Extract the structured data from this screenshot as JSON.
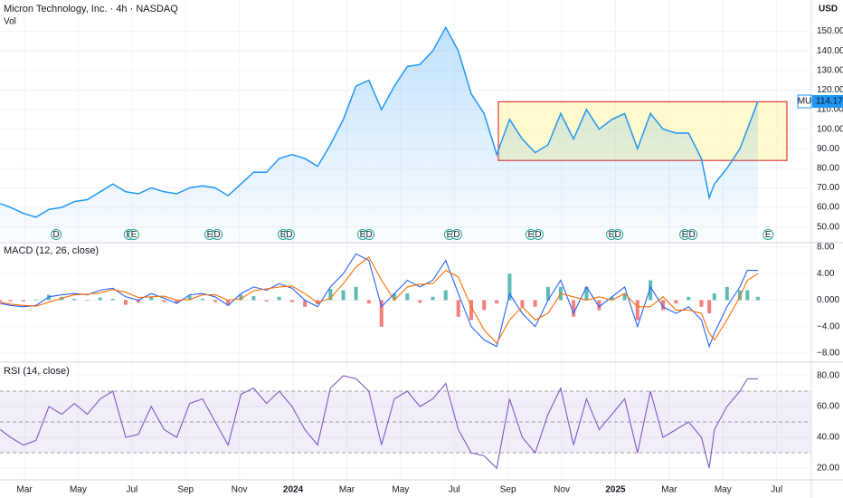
{
  "chart_data": [
    {
      "type": "line",
      "title": "Micron Technology, Inc. · 4h · NASDAQ",
      "subtitle": "Vol",
      "y_axis_label": "USD",
      "x": [
        1.1,
        1.48,
        1.96,
        2.43,
        2.91,
        3.39,
        3.86,
        4.34,
        4.82,
        5.29,
        5.77,
        6.24,
        6.72,
        7.2,
        7.67,
        8.15,
        8.63,
        9.1,
        9.58,
        10.06,
        10.53,
        11.01,
        11.48,
        11.96,
        12.44,
        12.91,
        13.39,
        13.87,
        14.34,
        14.82,
        15.29,
        15.77,
        16.25,
        16.72,
        17.2,
        17.68,
        18.15,
        18.63,
        19.11,
        19.58,
        20.06,
        20.53,
        21.01,
        21.49,
        21.96,
        22.44,
        22.92,
        23.39,
        23.87,
        24.34,
        24.82,
        25.3,
        25.77,
        26.25,
        26.72,
        27.2,
        27.49,
        27.68,
        28.15,
        28.63,
        28.91,
        29.3
      ],
      "series": [
        {
          "name": "MU",
          "color": "#2196f3",
          "values": [
            62,
            60,
            57,
            55,
            59,
            60,
            63,
            64,
            68,
            72,
            68,
            67,
            70,
            68,
            67,
            70,
            71,
            70,
            66,
            72,
            78,
            78,
            85,
            87,
            85,
            81,
            92,
            105,
            122,
            125,
            110,
            122,
            132,
            133,
            140,
            152,
            140,
            118,
            108,
            87,
            105,
            95,
            88,
            92,
            108,
            95,
            110,
            100,
            105,
            108,
            90,
            108,
            100,
            98,
            98,
            85,
            65,
            72,
            80,
            90,
            100,
            114.17
          ]
        }
      ],
      "box": {
        "x": [
          19.64,
          30.38
        ],
        "y": [
          84,
          114
        ],
        "stroke": "#e53935",
        "fill": "#fff59d"
      },
      "events": [
        {
          "x": 3.18,
          "label": "D"
        },
        {
          "x": 5.9,
          "label": "E"
        },
        {
          "x": 6.07,
          "label": "E"
        },
        {
          "x": 8.9,
          "label": "E"
        },
        {
          "x": 9.17,
          "label": "D"
        },
        {
          "x": 11.63,
          "label": "E"
        },
        {
          "x": 11.86,
          "label": "D"
        },
        {
          "x": 14.59,
          "label": "E"
        },
        {
          "x": 14.83,
          "label": "D"
        },
        {
          "x": 17.82,
          "label": "E"
        },
        {
          "x": 18.09,
          "label": "D"
        },
        {
          "x": 20.85,
          "label": "E"
        },
        {
          "x": 21.12,
          "label": "D"
        },
        {
          "x": 23.85,
          "label": "E"
        },
        {
          "x": 24.09,
          "label": "D"
        },
        {
          "x": 26.58,
          "label": "E"
        },
        {
          "x": 26.85,
          "label": "D"
        },
        {
          "x": 29.68,
          "label": "E"
        }
      ],
      "xlim": [
        1.09,
        31.29
      ],
      "xticks": [
        {
          "value": 2,
          "label": "Mar"
        },
        {
          "value": 4,
          "label": "May"
        },
        {
          "value": 6,
          "label": "Jul"
        },
        {
          "value": 8,
          "label": "Sep"
        },
        {
          "value": 10,
          "label": "Nov"
        },
        {
          "value": 12,
          "label": "2024"
        },
        {
          "value": 14,
          "label": "Mar"
        },
        {
          "value": 16,
          "label": "May"
        },
        {
          "value": 18,
          "label": "Jul"
        },
        {
          "value": 20,
          "label": "Sep"
        },
        {
          "value": 22,
          "label": "Nov"
        },
        {
          "value": 24,
          "label": "2025"
        },
        {
          "value": 26,
          "label": "Mar"
        },
        {
          "value": 28,
          "label": "May"
        },
        {
          "value": 30,
          "label": "Jul"
        }
      ],
      "ylim": [
        42,
        166
      ],
      "yticks": [
        {
          "value": 50,
          "label": "50.00"
        },
        {
          "value": 60,
          "label": "60.00"
        },
        {
          "value": 70,
          "label": "70.00"
        },
        {
          "value": 80,
          "label": "80.00"
        },
        {
          "value": 90,
          "label": "90.00"
        },
        {
          "value": 100,
          "label": "100.00"
        },
        {
          "value": 110,
          "label": "110.00"
        },
        {
          "value": 120,
          "label": "120.00"
        },
        {
          "value": 130,
          "label": "130.00"
        },
        {
          "value": 140,
          "label": "140.00"
        },
        {
          "value": 150,
          "label": "150.00"
        }
      ],
      "grid": true
    },
    {
      "type": "macd",
      "title": "MACD (12, 26, close)",
      "x": [
        1.1,
        1.48,
        1.96,
        2.43,
        2.91,
        3.39,
        3.86,
        4.34,
        4.82,
        5.29,
        5.77,
        6.24,
        6.72,
        7.2,
        7.67,
        8.15,
        8.63,
        9.1,
        9.58,
        10.06,
        10.53,
        11.01,
        11.48,
        11.96,
        12.44,
        12.91,
        13.39,
        13.87,
        14.34,
        14.82,
        15.29,
        15.77,
        16.25,
        16.72,
        17.2,
        17.68,
        18.15,
        18.63,
        19.11,
        19.58,
        20.06,
        20.53,
        21.01,
        21.49,
        21.96,
        22.44,
        22.92,
        23.39,
        23.87,
        24.34,
        24.82,
        25.3,
        25.77,
        26.25,
        26.72,
        27.2,
        27.49,
        27.68,
        28.15,
        28.63,
        28.91,
        29.3
      ],
      "series": [
        {
          "color": "#2962ff",
          "values": [
            -0.5,
            -0.8,
            -1,
            -0.8,
            0.5,
            0.8,
            1,
            0.8,
            1.5,
            1.8,
            0.5,
            0,
            1,
            0.3,
            -0.5,
            0.8,
            1,
            0.5,
            -0.8,
            1,
            2,
            1.5,
            2.5,
            1.8,
            0,
            -1,
            2,
            4,
            7,
            6,
            -1,
            1,
            3,
            2,
            3,
            6,
            1,
            -4,
            -6,
            -7,
            1,
            -2,
            -4,
            0,
            3,
            -2,
            2,
            -1,
            0.5,
            2,
            -4,
            2,
            -1,
            -2,
            -1,
            -3,
            -7,
            -5,
            -1,
            2,
            4.5,
            4.5
          ]
        },
        {
          "color": "#ff6d00",
          "values": [
            -0.3,
            -0.6,
            -0.8,
            -0.9,
            -0.3,
            0.3,
            0.8,
            0.9,
            1.1,
            1.6,
            1.2,
            0.4,
            0.5,
            0.6,
            0,
            0.1,
            0.8,
            0.8,
            0,
            0.2,
            1.4,
            1.7,
            2,
            2.1,
            1,
            -0.4,
            0.3,
            2.5,
            5,
            6.5,
            3,
            0,
            2,
            2.4,
            2.5,
            4.5,
            3.5,
            -1,
            -4.5,
            -6.5,
            -3,
            -1,
            -3,
            -2,
            1,
            0.5,
            0,
            0.5,
            0,
            1,
            -1,
            -1,
            0.5,
            -1.5,
            -1.5,
            -2,
            -5,
            -6,
            -3,
            0.5,
            3,
            4
          ]
        }
      ],
      "histogram": {
        "up_color": "#26a69a",
        "down_color": "#ef5350",
        "values": [
          -0.2,
          -0.2,
          -0.2,
          0.1,
          0.8,
          0.5,
          0.2,
          -0.1,
          0.4,
          0.2,
          -0.7,
          -0.4,
          0.5,
          -0.3,
          -0.5,
          0.7,
          0.2,
          -0.3,
          -0.8,
          0.8,
          0.6,
          -0.2,
          0.5,
          -0.3,
          -1,
          -0.6,
          1.7,
          1.5,
          2,
          -0.5,
          -4,
          1,
          1,
          -0.4,
          0.5,
          1.5,
          -2.5,
          -3,
          -1.5,
          -0.5,
          4,
          -1,
          -1,
          2,
          2,
          -2.5,
          2,
          -1.5,
          0.5,
          1,
          -3,
          3,
          -1.5,
          -0.5,
          0.5,
          -1,
          -2,
          1,
          2,
          1.5,
          1.5,
          0.5
        ]
      },
      "xlim": [
        1.09,
        31.29
      ],
      "ylim": [
        -9.37,
        8.68
      ],
      "yticks": [
        {
          "value": -8,
          "label": "−8.00"
        },
        {
          "value": -4,
          "label": "−4.00"
        },
        {
          "value": 0,
          "label": "0.000"
        },
        {
          "value": 4,
          "label": "4.00"
        },
        {
          "value": 8,
          "label": "8.00"
        }
      ],
      "grid": true
    },
    {
      "type": "rsi",
      "title": "RSI (14, close)",
      "x": [
        1.1,
        1.48,
        1.96,
        2.43,
        2.91,
        3.39,
        3.86,
        4.34,
        4.82,
        5.29,
        5.77,
        6.24,
        6.72,
        7.2,
        7.67,
        8.15,
        8.63,
        9.1,
        9.58,
        10.06,
        10.53,
        11.01,
        11.48,
        11.96,
        12.44,
        12.91,
        13.39,
        13.87,
        14.34,
        14.82,
        15.29,
        15.77,
        16.25,
        16.72,
        17.2,
        17.68,
        18.15,
        18.63,
        19.11,
        19.58,
        20.06,
        20.53,
        21.01,
        21.49,
        21.96,
        22.44,
        22.92,
        23.39,
        23.87,
        24.34,
        24.82,
        25.3,
        25.77,
        26.25,
        26.72,
        27.2,
        27.49,
        27.68,
        28.15,
        28.63,
        28.91,
        29.3
      ],
      "series": [
        {
          "color": "#7e57c2",
          "values": [
            45,
            40,
            35,
            38,
            60,
            55,
            62,
            55,
            65,
            70,
            40,
            42,
            60,
            45,
            40,
            62,
            65,
            50,
            35,
            68,
            72,
            62,
            70,
            60,
            45,
            35,
            72,
            80,
            78,
            70,
            35,
            65,
            70,
            60,
            65,
            75,
            45,
            30,
            28,
            20,
            65,
            40,
            30,
            55,
            72,
            35,
            65,
            45,
            55,
            65,
            30,
            70,
            40,
            45,
            50,
            40,
            20,
            45,
            60,
            70,
            78,
            78
          ]
        }
      ],
      "band": [
        30,
        70
      ],
      "midline": 50,
      "band_color": "#7e57c2",
      "xlim": [
        1.09,
        31.29
      ],
      "ylim": [
        12.4,
        88.8
      ],
      "yticks": [
        {
          "value": 20,
          "label": "20.00"
        },
        {
          "value": 40,
          "label": "40.00"
        },
        {
          "value": 60,
          "label": "60.00"
        },
        {
          "value": 80,
          "label": "80.00"
        }
      ],
      "grid": true
    }
  ]
}
